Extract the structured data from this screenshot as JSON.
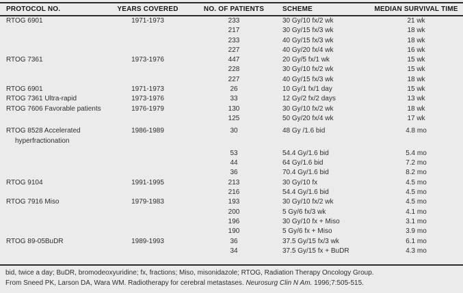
{
  "table": {
    "columns": [
      {
        "label": "PROTOCOL NO."
      },
      {
        "label": "YEARS COVERED"
      },
      {
        "label": "NO. OF PATIENTS"
      },
      {
        "label": "SCHEME"
      },
      {
        "label": "MEDIAN SURVIVAL TIME"
      }
    ],
    "rows": [
      {
        "protocol": "RTOG 6901",
        "years": "1971-1973",
        "patients": "233",
        "scheme": "30 Gy/10 fx/2 wk",
        "survival": "21 wk"
      },
      {
        "patients": "217",
        "scheme": "30 Gy/15 fx/3 wk",
        "survival": "18 wk"
      },
      {
        "patients": "233",
        "scheme": "40 Gy/15 fx/3 wk",
        "survival": "18 wk"
      },
      {
        "patients": "227",
        "scheme": "40 Gy/20 fx/4 wk",
        "survival": "16 wk"
      },
      {
        "protocol": "RTOG 7361",
        "years": "1973-1976",
        "patients": "447",
        "scheme": "20 Gy/5 fx/1 wk",
        "survival": "15 wk"
      },
      {
        "patients": "228",
        "scheme": "30 Gy/10 fx/2 wk",
        "survival": "15 wk"
      },
      {
        "patients": "227",
        "scheme": "40 Gy/15 fx/3 wk",
        "survival": "18 wk"
      },
      {
        "protocol": "RTOG 6901",
        "years": "1971-1973",
        "patients": "26",
        "scheme": "10 Gy/1 fx/1 day",
        "survival": "15 wk"
      },
      {
        "protocol": "RTOG 7361 Ultra-rapid",
        "years": "1973-1976",
        "patients": "33",
        "scheme": "12 Gy/2 fx/2 days",
        "survival": "13 wk"
      },
      {
        "protocol": "RTOG 7606 Favorable patients",
        "years": "1976-1979",
        "patients": "130",
        "scheme": "30 Gy/10 fx/2 wk",
        "survival": "18 wk"
      },
      {
        "patients": "125",
        "scheme": "50 Gy/20 fx/4 wk",
        "survival": "17 wk"
      },
      {
        "protocol": "RTOG 8528 Accelerated",
        "protocol_line2": "hyperfractionation",
        "years": "1986-1989",
        "patients": "30",
        "scheme": "48 Gy /1.6 bid",
        "survival": "4.8 mo",
        "spacer_before": true
      },
      {
        "patients": "53",
        "scheme": "54.4 Gy/1.6 bid",
        "survival": "5.4 mo",
        "spacer_before": true
      },
      {
        "patients": "44",
        "scheme": "64 Gy/1.6 bid",
        "survival": "7.2 mo"
      },
      {
        "patients": "36",
        "scheme": "70.4 Gy/1.6 bid",
        "survival": "8.2 mo"
      },
      {
        "protocol": "RTOG 9104",
        "years": "1991-1995",
        "patients": "213",
        "scheme": "30 Gy/10 fx",
        "survival": "4.5 mo"
      },
      {
        "patients": "216",
        "scheme": "54.4 Gy/1.6 bid",
        "survival": "4.5 mo"
      },
      {
        "protocol": "RTOG 7916 Miso",
        "years": "1979-1983",
        "patients": "193",
        "scheme": "30 Gy/10 fx/2 wk",
        "survival": "4.5 mo"
      },
      {
        "patients": "200",
        "scheme": "5 Gy/6 fx/3 wk",
        "survival": "4.1 mo"
      },
      {
        "patients": "196",
        "scheme": "30 Gy/10 fx + Miso",
        "survival": "3.1 mo"
      },
      {
        "patients": "190",
        "scheme": "5 Gy/6 fx + Miso",
        "survival": "3.9 mo"
      },
      {
        "protocol": "RTOG 89-05BuDR",
        "years": "1989-1993",
        "patients": "36",
        "scheme": "37.5 Gy/15 fx/3 wk",
        "survival": "6.1 mo"
      },
      {
        "patients": "34",
        "scheme": "37.5 Gy/15 fx + BuDR",
        "survival": "4.3 mo"
      }
    ]
  },
  "footnotes": {
    "abbreviations": "bid, twice a day; BuDR, bromodeoxyuridine; fx, fractions; Miso, misonidazole; RTOG, Radiation Therapy Oncology Group.",
    "source_prefix": "From Sneed PK, Larson DA, Wara WM. Radiotherapy for cerebral metastases. ",
    "source_journal": "Neurosurg Clin N Am.",
    "source_suffix": " 1996;7:505-515."
  }
}
